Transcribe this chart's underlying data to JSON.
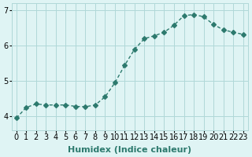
{
  "x": [
    0,
    1,
    2,
    3,
    4,
    5,
    6,
    7,
    8,
    9,
    10,
    11,
    12,
    13,
    14,
    15,
    16,
    17,
    18,
    19,
    20,
    21,
    22,
    23
  ],
  "y": [
    3.95,
    4.25,
    4.35,
    4.32,
    4.32,
    4.32,
    4.28,
    4.27,
    4.32,
    4.55,
    4.95,
    5.45,
    5.9,
    6.2,
    6.28,
    6.38,
    6.58,
    6.85,
    6.88,
    6.82,
    6.6,
    6.45,
    6.38,
    6.32
  ],
  "line_color": "#2d7a6e",
  "marker": "D",
  "marker_size": 3,
  "bg_color": "#dff4f4",
  "grid_color": "#b0d8d8",
  "xlabel": "Humidex (Indice chaleur)",
  "ylabel": "",
  "title": "",
  "xlim": [
    -0.5,
    23.5
  ],
  "ylim": [
    3.6,
    7.2
  ],
  "yticks": [
    4,
    5,
    6,
    7
  ],
  "xticks": [
    0,
    1,
    2,
    3,
    4,
    5,
    6,
    7,
    8,
    9,
    10,
    11,
    12,
    13,
    14,
    15,
    16,
    17,
    18,
    19,
    20,
    21,
    22,
    23
  ],
  "tick_fontsize": 7,
  "xlabel_fontsize": 8
}
